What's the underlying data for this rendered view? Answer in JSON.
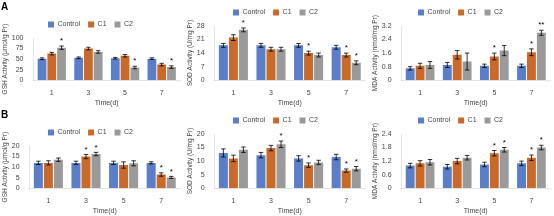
{
  "chart_data": [
    {
      "type": "bar",
      "title": "A",
      "categories": [
        "1",
        "3",
        "5",
        "7"
      ],
      "xlabel": "Time(d)",
      "ylabel": "GSH Activity (μmol/g Pr)",
      "ylim": [
        0,
        100
      ],
      "yticks": [
        0,
        25,
        50,
        75,
        100
      ],
      "grid": false,
      "legend": "top",
      "series": [
        {
          "name": "Control",
          "color": "#5B7EC9",
          "values": [
            51,
            53,
            52,
            51
          ],
          "errors": [
            2,
            2,
            2,
            2
          ]
        },
        {
          "name": "C1",
          "color": "#C96A2B",
          "values": [
            63,
            75,
            58,
            37
          ],
          "errors": [
            3,
            3,
            3,
            3
          ]
        },
        {
          "name": "C2",
          "color": "#9A9A9A",
          "values": [
            77,
            67,
            30,
            31
          ],
          "errors": [
            4,
            3,
            3,
            3
          ]
        }
      ],
      "annotations": [
        {
          "text": "*",
          "series": "C2",
          "category": "1"
        },
        {
          "text": "*",
          "series": "C2",
          "category": "5"
        },
        {
          "text": "*",
          "series": "C2",
          "category": "7"
        }
      ]
    },
    {
      "type": "bar",
      "categories": [
        "1",
        "3",
        "5",
        "7"
      ],
      "xlabel": "Time(d)",
      "ylabel": "SOD Activity (U/mg Pr)",
      "ylim": [
        0,
        28
      ],
      "yticks": [
        0,
        7,
        14,
        21,
        28
      ],
      "grid": false,
      "legend": "top",
      "series": [
        {
          "name": "Control",
          "color": "#5B7EC9",
          "values": [
            18,
            18,
            18,
            17
          ],
          "errors": [
            1,
            1,
            1,
            1
          ]
        },
        {
          "name": "C1",
          "color": "#C96A2B",
          "values": [
            22,
            16,
            14,
            13
          ],
          "errors": [
            1.5,
            1,
            1,
            1
          ]
        },
        {
          "name": "C2",
          "color": "#9A9A9A",
          "values": [
            26,
            16,
            13,
            9
          ],
          "errors": [
            1,
            1,
            1,
            1
          ]
        }
      ],
      "annotations": [
        {
          "text": "*",
          "series": "C1",
          "category": "5"
        },
        {
          "text": "*",
          "series": "C1",
          "category": "7"
        },
        {
          "text": "*",
          "series": "C2",
          "category": "1"
        },
        {
          "text": "*",
          "series": "C2",
          "category": "7"
        }
      ]
    },
    {
      "type": "bar",
      "categories": [
        "1",
        "3",
        "5",
        "7"
      ],
      "xlabel": "Time(d)",
      "ylabel": "MDA Activity (nmol/mg Pr)",
      "ylim": [
        0,
        3.2
      ],
      "yticks": [
        0,
        0.8,
        1.6,
        2.4,
        3.2
      ],
      "grid": false,
      "legend": "top",
      "series": [
        {
          "name": "Control",
          "color": "#5B7EC9",
          "values": [
            0.7,
            0.9,
            0.85,
            0.85
          ],
          "errors": [
            0.1,
            0.15,
            0.1,
            0.1
          ]
        },
        {
          "name": "C1",
          "color": "#C96A2B",
          "values": [
            0.85,
            1.5,
            1.4,
            1.65
          ],
          "errors": [
            0.15,
            0.25,
            0.2,
            0.2
          ]
        },
        {
          "name": "C2",
          "color": "#9A9A9A",
          "values": [
            0.9,
            1.1,
            1.75,
            2.8
          ],
          "errors": [
            0.2,
            0.5,
            0.3,
            0.15
          ]
        }
      ],
      "annotations": [
        {
          "text": "*",
          "series": "C1",
          "category": "5"
        },
        {
          "text": "*",
          "series": "C1",
          "category": "7"
        },
        {
          "text": "**",
          "series": "C2",
          "category": "7"
        }
      ]
    },
    {
      "type": "bar",
      "title": "B",
      "categories": [
        "1",
        "3",
        "5",
        "7"
      ],
      "xlabel": "Time(d)",
      "ylabel": "GSH Activity (μmol/g Pr)",
      "ylim": [
        0,
        20
      ],
      "yticks": [
        0,
        5,
        10,
        15,
        20
      ],
      "grid": false,
      "legend": "top",
      "series": [
        {
          "name": "Control",
          "color": "#5B7EC9",
          "values": [
            12,
            12,
            12,
            12
          ],
          "errors": [
            0.8,
            0.8,
            0.8,
            0.5
          ]
        },
        {
          "name": "C1",
          "color": "#C96A2B",
          "values": [
            12,
            15,
            11,
            6.5
          ],
          "errors": [
            1.0,
            1.0,
            1.5,
            0.8
          ]
        },
        {
          "name": "C2",
          "color": "#9A9A9A",
          "values": [
            13.5,
            16.2,
            11.8,
            5.1
          ],
          "errors": [
            0.8,
            0.8,
            1.2,
            0.5
          ]
        }
      ],
      "annotations": [
        {
          "text": "*",
          "series": "C1",
          "category": "3"
        },
        {
          "text": "*",
          "series": "C1",
          "category": "7"
        },
        {
          "text": "*",
          "series": "C2",
          "category": "3"
        },
        {
          "text": "*",
          "series": "C2",
          "category": "7"
        }
      ]
    },
    {
      "type": "bar",
      "categories": [
        "1",
        "3",
        "5",
        "7"
      ],
      "xlabel": "Time(d)",
      "ylabel": "SOD Activity (U/mg Pr)",
      "ylim": [
        0,
        20
      ],
      "yticks": [
        0,
        5,
        10,
        15,
        20
      ],
      "grid": false,
      "legend": "top",
      "series": [
        {
          "name": "Control",
          "color": "#5B7EC9",
          "values": [
            13,
            12.2,
            11,
            11.5
          ],
          "errors": [
            1.5,
            1.0,
            1.0,
            1.0
          ]
        },
        {
          "name": "C1",
          "color": "#C96A2B",
          "values": [
            11,
            14.8,
            8.5,
            6.5
          ],
          "errors": [
            1.2,
            1.0,
            0.8,
            0.6
          ]
        },
        {
          "name": "C2",
          "color": "#9A9A9A",
          "values": [
            14.2,
            16.2,
            9.5,
            7.2
          ],
          "errors": [
            1.0,
            1.2,
            0.8,
            0.8
          ]
        }
      ],
      "annotations": [
        {
          "text": "*",
          "series": "C1",
          "category": "5"
        },
        {
          "text": "*",
          "series": "C1",
          "category": "7"
        },
        {
          "text": "*",
          "series": "C2",
          "category": "3"
        },
        {
          "text": "*",
          "series": "C2",
          "category": "7"
        }
      ]
    },
    {
      "type": "bar",
      "categories": [
        "1",
        "3",
        "5",
        "7"
      ],
      "xlabel": "Time(d)",
      "ylabel": "MDA Activity (nmol/mg Pr)",
      "ylim": [
        0,
        2.4
      ],
      "yticks": [
        0,
        0.6,
        1.2,
        1.8,
        2.4
      ],
      "grid": false,
      "legend": "top",
      "series": [
        {
          "name": "Control",
          "color": "#5B7EC9",
          "values": [
            1.0,
            0.95,
            1.05,
            1.1
          ],
          "errors": [
            0.1,
            0.1,
            0.1,
            0.1
          ]
        },
        {
          "name": "C1",
          "color": "#C96A2B",
          "values": [
            1.1,
            1.2,
            1.55,
            1.35
          ],
          "errors": [
            0.12,
            0.12,
            0.12,
            0.12
          ]
        },
        {
          "name": "C2",
          "color": "#9A9A9A",
          "values": [
            1.15,
            1.35,
            1.7,
            1.8
          ],
          "errors": [
            0.12,
            0.1,
            0.1,
            0.1
          ]
        }
      ],
      "annotations": [
        {
          "text": "*",
          "series": "C1",
          "category": "5"
        },
        {
          "text": "*",
          "series": "C1",
          "category": "7"
        },
        {
          "text": "*",
          "series": "C2",
          "category": "5"
        },
        {
          "text": "*",
          "series": "C2",
          "category": "7"
        }
      ]
    }
  ]
}
